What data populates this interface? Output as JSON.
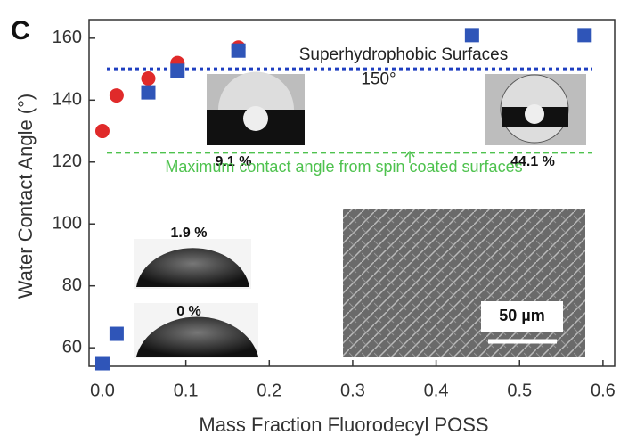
{
  "chart_data": {
    "type": "scatter",
    "panel_label": "C",
    "xlabel": "Mass Fraction Fluorodecyl POSS",
    "ylabel": "Water Contact Angle (°)",
    "xlim": [
      -0.016,
      0.614
    ],
    "ylim": [
      54,
      166
    ],
    "xticks": [
      {
        "value": 0,
        "label": "0.0"
      },
      0.1,
      0.2,
      0.3,
      0.4,
      0.5,
      0.6
    ],
    "yticks": [
      60,
      80,
      100,
      120,
      140,
      160
    ],
    "series": [
      {
        "marker": "circle",
        "color": "#e02a2a",
        "x": [
          0.0,
          0.017,
          0.055,
          0.09,
          0.163
        ],
        "values": [
          130,
          141.5,
          147,
          152,
          157
        ]
      },
      {
        "marker": "square",
        "color": "#2f55b8",
        "x": [
          0.0,
          0.017,
          0.055,
          0.09,
          0.163,
          0.443,
          0.578
        ],
        "values": [
          55,
          64.5,
          142.5,
          149.5,
          156,
          161,
          161
        ]
      }
    ],
    "reference_lines": [
      {
        "value": 150,
        "color": "#1f3fc0",
        "label": "150°"
      },
      {
        "value": 123,
        "color": "#4ec24e",
        "label": "Maximum contact angle from spin coated surfaces"
      }
    ],
    "annotations": [
      "Superhydrophobic Surfaces"
    ],
    "insets": [
      "9.1 %",
      "44.1 %",
      "1.9 %",
      "0 %"
    ],
    "scale_bar": "50 µm"
  }
}
